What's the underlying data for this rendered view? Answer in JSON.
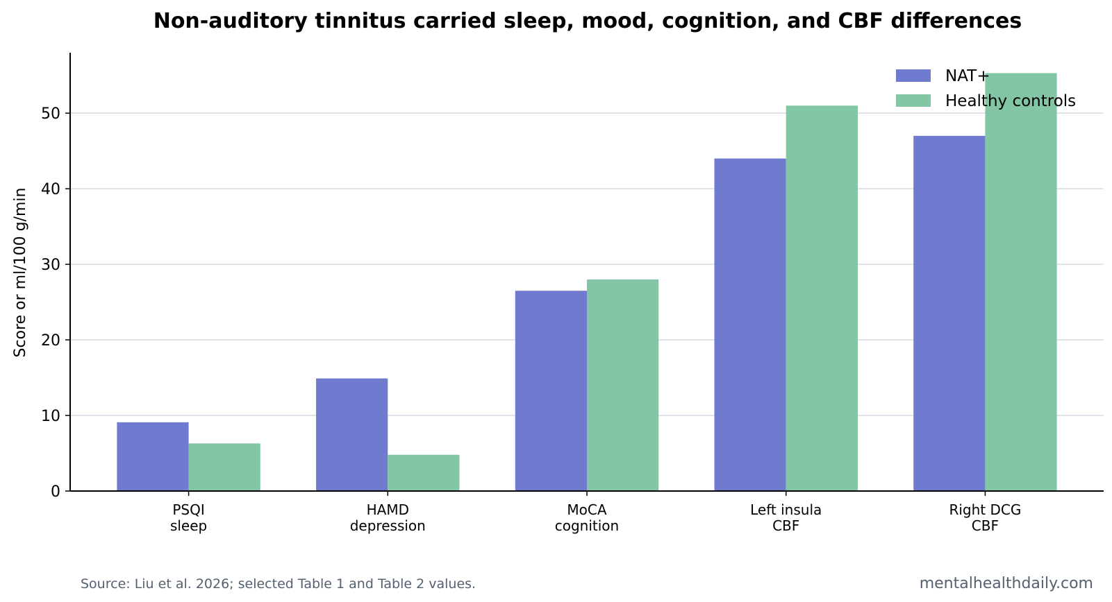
{
  "chart_data": {
    "type": "bar",
    "title": "Non-auditory tinnitus carried sleep, mood, cognition, and CBF differences",
    "ylabel": "Score or ml/100 g/min",
    "xlabel": "",
    "categories": [
      [
        "PSQI",
        "sleep"
      ],
      [
        "HAMD",
        "depression"
      ],
      [
        "MoCA",
        "cognition"
      ],
      [
        "Left insula",
        "CBF"
      ],
      [
        "Right DCG",
        "CBF"
      ]
    ],
    "series": [
      {
        "name": "NAT+",
        "color": "#707bcf",
        "values": [
          9.1,
          14.9,
          26.5,
          44.0,
          47.0
        ]
      },
      {
        "name": "Healthy controls",
        "color": "#82c6a5",
        "values": [
          6.3,
          4.8,
          28.0,
          51.0,
          55.3
        ]
      }
    ],
    "ylim": [
      0,
      58
    ],
    "yticks": [
      0,
      10,
      20,
      30,
      40,
      50
    ],
    "grid": "y",
    "legend_position": "top-right"
  },
  "footer": {
    "source": "Source: Liu et al. 2026; selected Table 1 and Table 2 values.",
    "site": "mentalhealthdaily.com"
  }
}
